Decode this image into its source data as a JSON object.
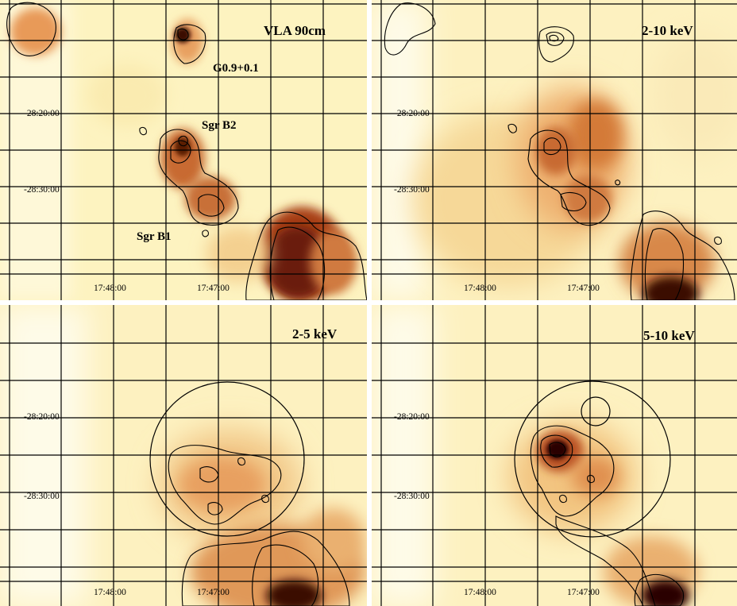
{
  "figure": {
    "panels": [
      {
        "id": "radio",
        "title": "VLA 90cm",
        "dec_labels": [
          "-28:20:00",
          "-28:30:00"
        ],
        "ra_labels": [
          "17:48:00",
          "17:47:00"
        ],
        "sources": [
          {
            "name": "G0.9+0.1"
          },
          {
            "name": "Sgr B2"
          },
          {
            "name": "Sgr B1"
          }
        ]
      },
      {
        "id": "hard",
        "title": "2-10 keV",
        "dec_labels": [
          "-28:20:00",
          "-28:30:00"
        ],
        "ra_labels": [
          "17:48:00",
          "17:47:00"
        ]
      },
      {
        "id": "soft",
        "title": "2-5 keV",
        "dec_labels": [
          "-28:20:00",
          "-28:30:00"
        ],
        "ra_labels": [
          "17:48:00",
          "17:47:00"
        ]
      },
      {
        "id": "mid",
        "title": "5-10 keV",
        "dec_labels": [
          "-28:20:00",
          "-28:30:00"
        ],
        "ra_labels": [
          "17:48:00",
          "17:47:00"
        ]
      }
    ],
    "colors": {
      "background": "#fdf3c0",
      "low": "#f8dca0",
      "mid": "#e8a060",
      "high": "#b85020",
      "peak": "#3a0a00",
      "lines": "#000000"
    }
  }
}
